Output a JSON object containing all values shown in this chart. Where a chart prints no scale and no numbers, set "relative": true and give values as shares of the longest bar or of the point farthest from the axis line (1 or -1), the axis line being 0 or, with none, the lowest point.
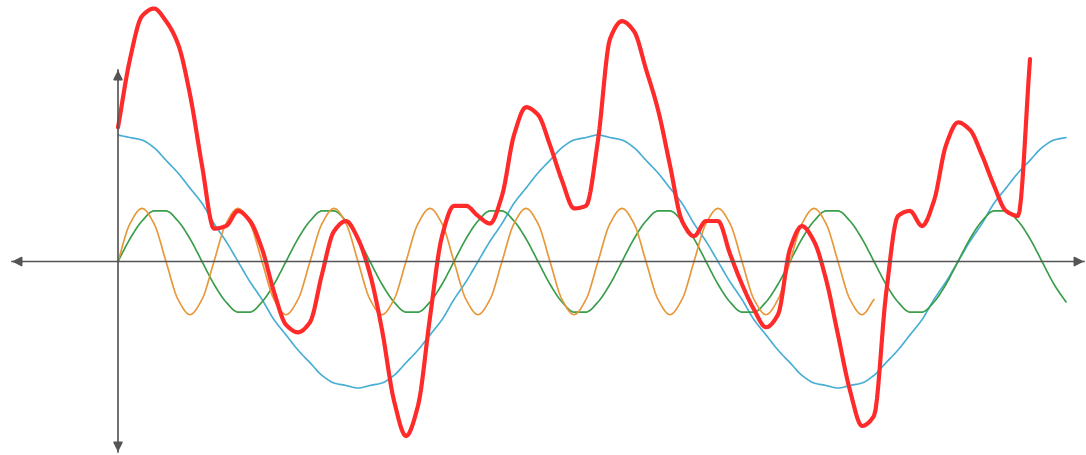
{
  "chart_data": {
    "type": "line",
    "relative": true,
    "categories": [
      null,
      null,
      null,
      null,
      null,
      null,
      null,
      null,
      null,
      null,
      null,
      null,
      null,
      null,
      null,
      null,
      null,
      null,
      null,
      null,
      null,
      null,
      null,
      null,
      null,
      null,
      null,
      null,
      null,
      null,
      null,
      null,
      null,
      null,
      null,
      null,
      null,
      null,
      null,
      null,
      null,
      null,
      null,
      null,
      null,
      null,
      null,
      null,
      null,
      null,
      null,
      null,
      null,
      null,
      null,
      null,
      null,
      null,
      null,
      null,
      null,
      null,
      null,
      null,
      null,
      null,
      null,
      null,
      null,
      null,
      null,
      null,
      null,
      null,
      null,
      null,
      null,
      null,
      null,
      null
    ],
    "series": [
      {
        "color": "#4aaed4",
        "values": [
          0.5,
          0.49,
          0.48,
          0.45,
          0.4,
          0.35,
          0.29,
          0.23,
          0.15,
          0.08,
          0,
          -0.08,
          -0.15,
          -0.23,
          -0.29,
          -0.35,
          -0.4,
          -0.45,
          -0.48,
          -0.49,
          -0.5,
          -0.49,
          -0.48,
          -0.45,
          -0.4,
          -0.35,
          -0.29,
          -0.23,
          -0.15,
          -0.08,
          0,
          0.08,
          0.15,
          0.23,
          0.29,
          0.35,
          0.4,
          0.45,
          0.48,
          0.49,
          0.5,
          0.49,
          0.48,
          0.45,
          0.4,
          0.35,
          0.29,
          0.23,
          0.15,
          0.08,
          0,
          -0.08,
          -0.15,
          -0.23,
          -0.29,
          -0.35,
          -0.4,
          -0.45,
          -0.48,
          -0.49,
          -0.5,
          -0.49,
          -0.48,
          -0.45,
          -0.4,
          -0.35,
          -0.29,
          -0.23,
          -0.15,
          -0.08,
          0,
          0.08,
          0.15,
          0.23,
          0.29,
          0.35,
          0.4,
          0.45,
          0.48,
          0.49
        ]
      },
      {
        "color": "#3a9e4a",
        "values": [
          0,
          0.09,
          0.16,
          0.2,
          0.2,
          0.16,
          0.09,
          0,
          -0.09,
          -0.16,
          -0.2,
          -0.2,
          -0.16,
          -0.09,
          0,
          0.09,
          0.16,
          0.2,
          0.2,
          0.16,
          0.09,
          0,
          -0.09,
          -0.16,
          -0.2,
          -0.2,
          -0.16,
          -0.09,
          0,
          0.09,
          0.16,
          0.2,
          0.2,
          0.16,
          0.09,
          0,
          -0.09,
          -0.16,
          -0.2,
          -0.2,
          -0.16,
          -0.09,
          0,
          0.09,
          0.16,
          0.2,
          0.2,
          0.16,
          0.09,
          0,
          -0.09,
          -0.16,
          -0.2,
          -0.2,
          -0.16,
          -0.09,
          0,
          0.09,
          0.16,
          0.2,
          0.2,
          0.16,
          0.09,
          0,
          -0.09,
          -0.16,
          -0.2,
          -0.2,
          -0.16,
          -0.09,
          0,
          0.09,
          0.16,
          0.2,
          0.2,
          0.16,
          0.09,
          0,
          -0.09,
          -0.16
        ]
      },
      {
        "color": "#e8973a",
        "values": [
          0,
          0.15,
          0.21,
          0.15,
          0,
          -0.15,
          -0.21,
          -0.15,
          0,
          0.15,
          0.21,
          0.15,
          0,
          -0.15,
          -0.21,
          -0.15,
          0,
          0.15,
          0.21,
          0.15,
          0,
          -0.15,
          -0.21,
          -0.15,
          0,
          0.15,
          0.21,
          0.15,
          0,
          -0.15,
          -0.21,
          -0.15,
          0,
          0.15,
          0.21,
          0.15,
          0,
          -0.15,
          -0.21,
          -0.15,
          0,
          0.15,
          0.21,
          0.15,
          0,
          -0.15,
          -0.21,
          -0.15,
          0,
          0.15,
          0.21,
          0.15,
          0,
          -0.15,
          -0.21,
          -0.15,
          0,
          0.15,
          0.21,
          0.15,
          0,
          -0.15,
          -0.21,
          -0.15,
          null,
          null,
          null,
          null,
          null,
          null,
          null,
          null,
          null,
          null,
          null,
          null,
          null,
          null,
          null,
          null
        ]
      },
      {
        "color": "#ff2a2a",
        "values": [
          0.53,
          0.8,
          0.97,
          1.0,
          0.95,
          0.86,
          0.66,
          0.38,
          0.13,
          0.14,
          0.2,
          0.16,
          0.05,
          -0.12,
          -0.25,
          -0.28,
          -0.24,
          -0.05,
          0.12,
          0.16,
          0.09,
          -0.05,
          -0.27,
          -0.55,
          -0.69,
          -0.57,
          -0.22,
          0.1,
          0.22,
          0.22,
          0.18,
          0.15,
          0.26,
          0.5,
          0.61,
          0.58,
          0.46,
          0.32,
          0.21,
          0.22,
          0.48,
          0.88,
          0.95,
          0.91,
          0.76,
          0.6,
          0.38,
          0.16,
          0.1,
          0.16,
          0.16,
          0.03,
          -0.09,
          -0.19,
          -0.26,
          -0.21,
          0.05,
          0.14,
          0.08,
          -0.07,
          -0.29,
          -0.51,
          -0.65,
          -0.61,
          -0.13,
          0.18,
          0.2,
          0.14,
          0.24,
          0.46,
          0.55,
          0.52,
          0.42,
          0.3,
          0.2,
          0.18,
          0.8,
          null,
          null,
          null
        ]
      }
    ]
  }
}
